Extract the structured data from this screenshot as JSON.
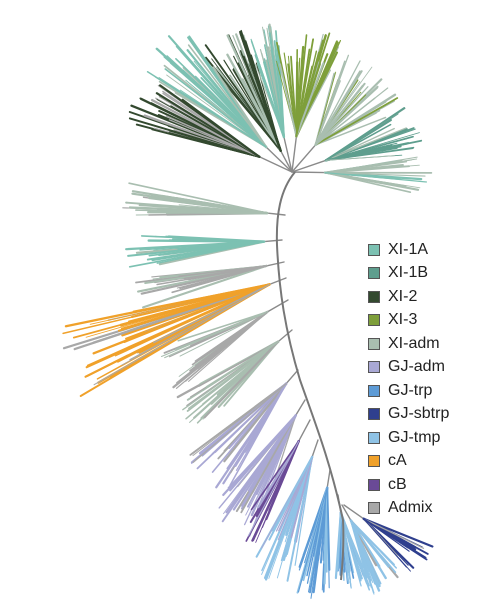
{
  "figure": {
    "type": "phylogenetic-tree",
    "background": "#ffffff",
    "backbone_color": "#777777"
  },
  "legend": {
    "items": [
      {
        "label": "XI-1A",
        "color": "#7cc1b2"
      },
      {
        "label": "XI-1B",
        "color": "#5e9e8e"
      },
      {
        "label": "XI-2",
        "color": "#33492f"
      },
      {
        "label": "XI-3",
        "color": "#7e9f3a"
      },
      {
        "label": "XI-adm",
        "color": "#a9beb0"
      },
      {
        "label": "GJ-adm",
        "color": "#a9a8d4"
      },
      {
        "label": "GJ-trp",
        "color": "#5d9bd6"
      },
      {
        "label": "GJ-sbtrp",
        "color": "#2f3f8e"
      },
      {
        "label": "GJ-tmp",
        "color": "#8fc3e6"
      },
      {
        "label": "cA",
        "color": "#f0a12a"
      },
      {
        "label": "cB",
        "color": "#6a4a96"
      },
      {
        "label": "Admix",
        "color": "#a8a8a8"
      }
    ]
  }
}
